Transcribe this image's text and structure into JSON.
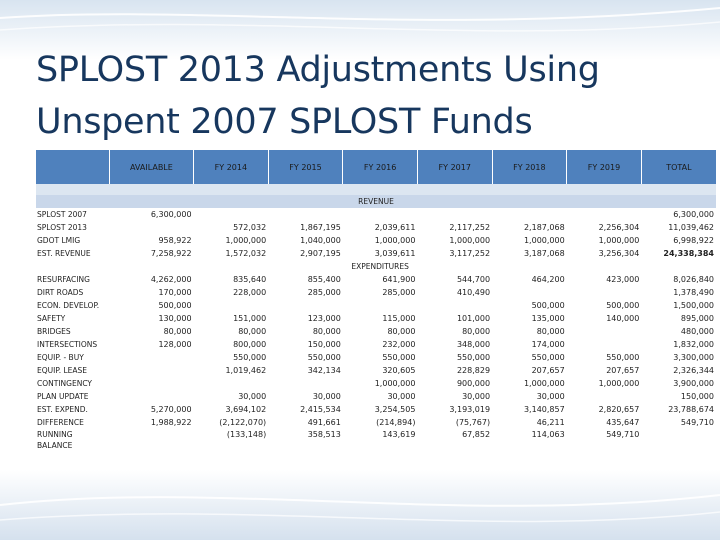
{
  "slide": {
    "title_line1": "SPLOST 2013 Adjustments Using",
    "title_line2": "Unspent 2007 SPLOST Funds"
  },
  "table": {
    "headers": [
      "",
      "AVAILABLE",
      "FY 2014",
      "FY 2015",
      "FY 2016",
      "FY 2017",
      "FY 2018",
      "FY 2019",
      "TOTAL"
    ],
    "revenue_label": "REVENUE",
    "expenditures_label": "EXPENDITURES",
    "revenue_rows": [
      {
        "label": "SPLOST 2007",
        "cells": [
          "6,300,000",
          "",
          "",
          "",
          "",
          "",
          "",
          "6,300,000"
        ]
      },
      {
        "label": "SPLOST 2013",
        "cells": [
          "",
          "572,032",
          "1,867,195",
          "2,039,611",
          "2,117,252",
          "2,187,068",
          "2,256,304",
          "11,039,462"
        ]
      },
      {
        "label": "GDOT LMIG",
        "cells": [
          "958,922",
          "1,000,000",
          "1,040,000",
          "1,000,000",
          "1,000,000",
          "1,000,000",
          "1,000,000",
          "6,998,922"
        ]
      },
      {
        "label": "EST. REVENUE",
        "cells": [
          "7,258,922",
          "1,572,032",
          "2,907,195",
          "3,039,611",
          "3,117,252",
          "3,187,068",
          "3,256,304",
          "24,338,384"
        ]
      }
    ],
    "expenditure_rows": [
      {
        "label": "RESURFACING",
        "cells": [
          "4,262,000",
          "835,640",
          "855,400",
          "641,900",
          "544,700",
          "464,200",
          "423,000",
          "8,026,840"
        ]
      },
      {
        "label": "DIRT ROADS",
        "cells": [
          "170,000",
          "228,000",
          "285,000",
          "285,000",
          "410,490",
          "",
          "",
          "1,378,490"
        ]
      },
      {
        "label": "ECON. DEVELOP.",
        "cells": [
          "500,000",
          "",
          "",
          "",
          "",
          "500,000",
          "500,000",
          "1,500,000"
        ]
      },
      {
        "label": "SAFETY",
        "cells": [
          "130,000",
          "151,000",
          "123,000",
          "115,000",
          "101,000",
          "135,000",
          "140,000",
          "895,000"
        ]
      },
      {
        "label": "BRIDGES",
        "cells": [
          "80,000",
          "80,000",
          "80,000",
          "80,000",
          "80,000",
          "80,000",
          "",
          "480,000"
        ]
      },
      {
        "label": "INTERSECTIONS",
        "cells": [
          "128,000",
          "800,000",
          "150,000",
          "232,000",
          "348,000",
          "174,000",
          "",
          "1,832,000"
        ]
      },
      {
        "label": "EQUIP. - BUY",
        "cells": [
          "",
          "550,000",
          "550,000",
          "550,000",
          "550,000",
          "550,000",
          "550,000",
          "3,300,000"
        ]
      },
      {
        "label": "EQUIP. LEASE",
        "cells": [
          "",
          "1,019,462",
          "342,134",
          "320,605",
          "228,829",
          "207,657",
          "207,657",
          "2,326,344"
        ]
      },
      {
        "label": "CONTINGENCY",
        "cells": [
          "",
          "",
          "",
          "1,000,000",
          "900,000",
          "1,000,000",
          "1,000,000",
          "3,900,000"
        ]
      },
      {
        "label": "PLAN UPDATE",
        "cells": [
          "",
          "30,000",
          "30,000",
          "30,000",
          "30,000",
          "30,000",
          "",
          "150,000"
        ]
      },
      {
        "label": "EST. EXPEND.",
        "cells": [
          "5,270,000",
          "3,694,102",
          "2,415,534",
          "3,254,505",
          "3,193,019",
          "3,140,857",
          "2,820,657",
          "23,788,674"
        ]
      },
      {
        "label": "DIFFERENCE",
        "cells": [
          "1,988,922",
          "(2,122,070)",
          "491,661",
          "(214,894)",
          "(75,767)",
          "46,211",
          "435,647",
          "549,710"
        ]
      }
    ],
    "running_balance": {
      "label_line1": "RUNNING",
      "label_line2": "BALANCE",
      "cells": [
        "",
        "(133,148)",
        "358,513",
        "143,619",
        "67,852",
        "114,063",
        "549,710",
        ""
      ]
    }
  }
}
